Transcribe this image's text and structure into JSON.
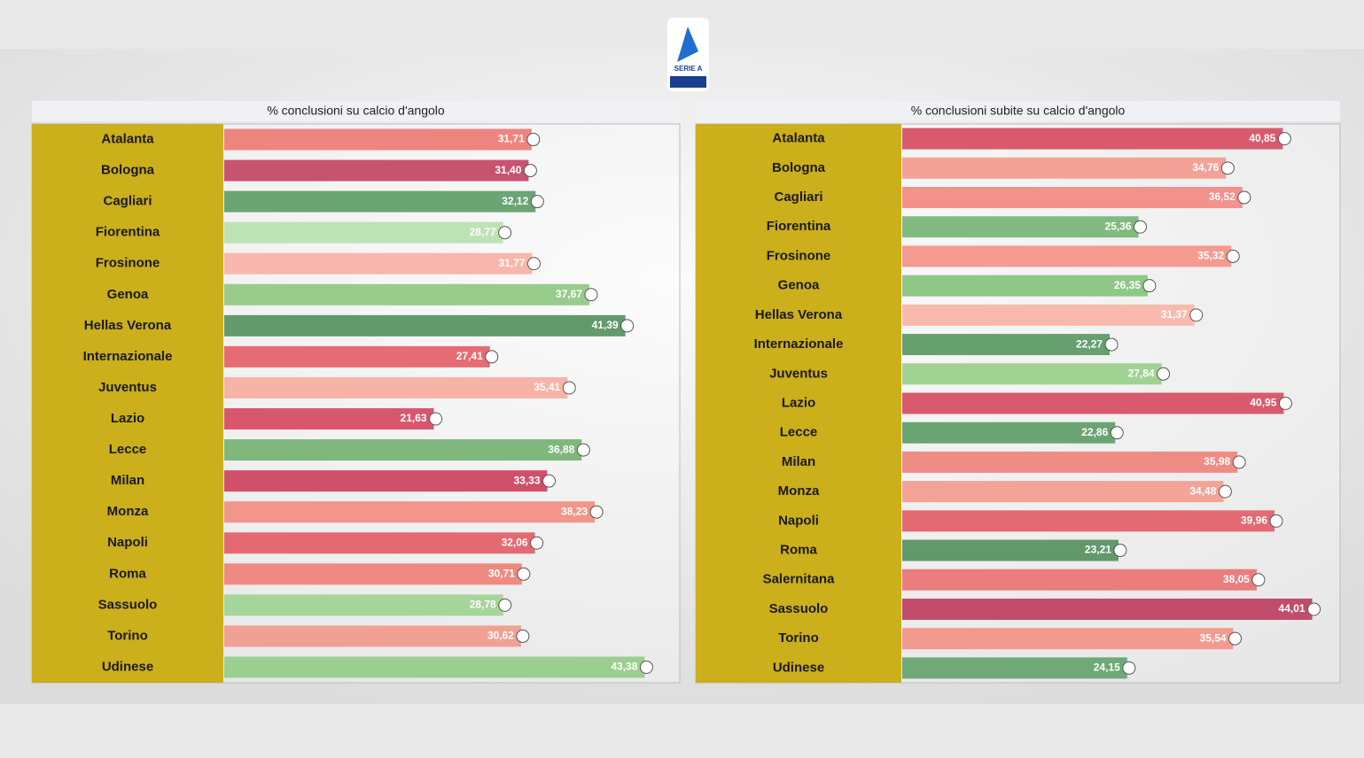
{
  "logo": {
    "text": "SERIE A"
  },
  "chart_data": [
    {
      "type": "barh",
      "title": "% conclusioni su calcio d'angolo",
      "categories": [
        "Atalanta",
        "Bologna",
        "Cagliari",
        "Fiorentina",
        "Frosinone",
        "Genoa",
        "Hellas Verona",
        "Internazionale",
        "Juventus",
        "Lazio",
        "Lecce",
        "Milan",
        "Monza",
        "Napoli",
        "Roma",
        "Sassuolo",
        "Torino",
        "Udinese"
      ],
      "values": [
        31.71,
        31.4,
        32.12,
        28.77,
        31.77,
        37.67,
        41.39,
        27.41,
        35.41,
        21.63,
        36.88,
        33.33,
        38.23,
        32.06,
        30.71,
        28.78,
        30.62,
        43.38
      ],
      "value_labels": [
        "31,71",
        "31,40",
        "32,12",
        "28,77",
        "31,77",
        "37,67",
        "41,39",
        "27,41",
        "35,41",
        "21,63",
        "36,88",
        "33,33",
        "38,23",
        "32,06",
        "30,71",
        "28,78",
        "30,62",
        "43,38"
      ],
      "colors": [
        "#ee8480",
        "#c8536e",
        "#6aa573",
        "#bde3b3",
        "#f8b7ac",
        "#99cc8c",
        "#629a6c",
        "#e66c74",
        "#f8b3a8",
        "#d9576d",
        "#7fb77c",
        "#d04f69",
        "#f2958a",
        "#e36a73",
        "#ef8a83",
        "#a6d59a",
        "#f1a094",
        "#9bcf8f"
      ],
      "xlim": [
        0,
        47
      ]
    },
    {
      "type": "barh",
      "title": "% conclusioni subite su calcio d'angolo",
      "categories": [
        "Atalanta",
        "Bologna",
        "Cagliari",
        "Fiorentina",
        "Frosinone",
        "Genoa",
        "Hellas Verona",
        "Internazionale",
        "Juventus",
        "Lazio",
        "Lecce",
        "Milan",
        "Monza",
        "Napoli",
        "Roma",
        "Salernitana",
        "Sassuolo",
        "Torino",
        "Udinese"
      ],
      "values": [
        40.85,
        34.76,
        36.52,
        25.36,
        35.32,
        26.35,
        31.37,
        22.27,
        27.84,
        40.95,
        22.86,
        35.98,
        34.48,
        39.96,
        23.21,
        38.05,
        44.01,
        35.54,
        24.15
      ],
      "value_labels": [
        "40,85",
        "34,76",
        "36,52",
        "25,36",
        "35,32",
        "26,35",
        "31,37",
        "22,27",
        "27,84",
        "40,95",
        "22,86",
        "35,98",
        "34,48",
        "39,96",
        "23,21",
        "38,05",
        "44,01",
        "35,54",
        "24,15"
      ],
      "colors": [
        "#d95a6c",
        "#f4a197",
        "#f3928b",
        "#81ba7e",
        "#f59a8f",
        "#8fc787",
        "#f8baae",
        "#66a06f",
        "#a0d293",
        "#d95a6c",
        "#6aa573",
        "#ef8c86",
        "#f3a398",
        "#e36a72",
        "#62996b",
        "#eb7d7d",
        "#c24c6b",
        "#f39a8f",
        "#6ea976"
      ],
      "xlim": [
        0,
        47
      ]
    }
  ]
}
